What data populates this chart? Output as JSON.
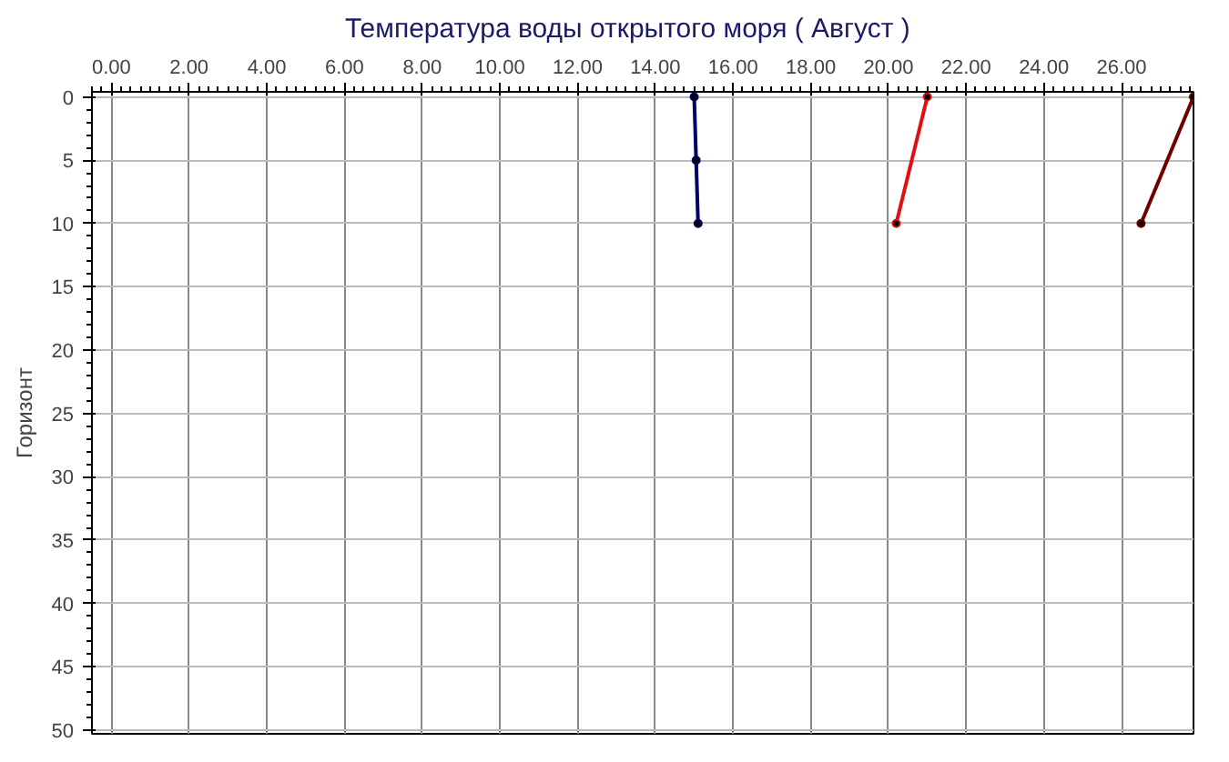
{
  "chart_data": {
    "type": "line",
    "title": "Температура воды открытого моря     ( Август )",
    "ylabel": "Горизонт",
    "marker": "circle",
    "grid": true,
    "xlim": [
      -0.5,
      27.85
    ],
    "ylim": [
      50.3,
      -0.4
    ],
    "xticks": [
      {
        "value": 0,
        "label": "0.00"
      },
      {
        "value": 2,
        "label": "2.00"
      },
      {
        "value": 4,
        "label": "4.00"
      },
      {
        "value": 6,
        "label": "6.00"
      },
      {
        "value": 8,
        "label": "8.00"
      },
      {
        "value": 10,
        "label": "10.00"
      },
      {
        "value": 12,
        "label": "12.00"
      },
      {
        "value": 14,
        "label": "14.00"
      },
      {
        "value": 16,
        "label": "16.00"
      },
      {
        "value": 18,
        "label": "18.00"
      },
      {
        "value": 20,
        "label": "20.00"
      },
      {
        "value": 22,
        "label": "22.00"
      },
      {
        "value": 24,
        "label": "24.00"
      },
      {
        "value": 26,
        "label": "26.00"
      }
    ],
    "yticks": [
      0,
      5,
      10,
      15,
      20,
      25,
      30,
      35,
      40,
      45,
      50
    ],
    "series": [
      {
        "color": "#000066",
        "x": [
          15.0,
          15.05,
          15.1
        ],
        "values": [
          0,
          5,
          10
        ]
      },
      {
        "color": "#e01010",
        "x": [
          21.0,
          20.2
        ],
        "values": [
          0,
          10
        ]
      },
      {
        "color": "#700000",
        "x": [
          27.85,
          26.5
        ],
        "values": [
          0,
          10
        ]
      }
    ]
  }
}
